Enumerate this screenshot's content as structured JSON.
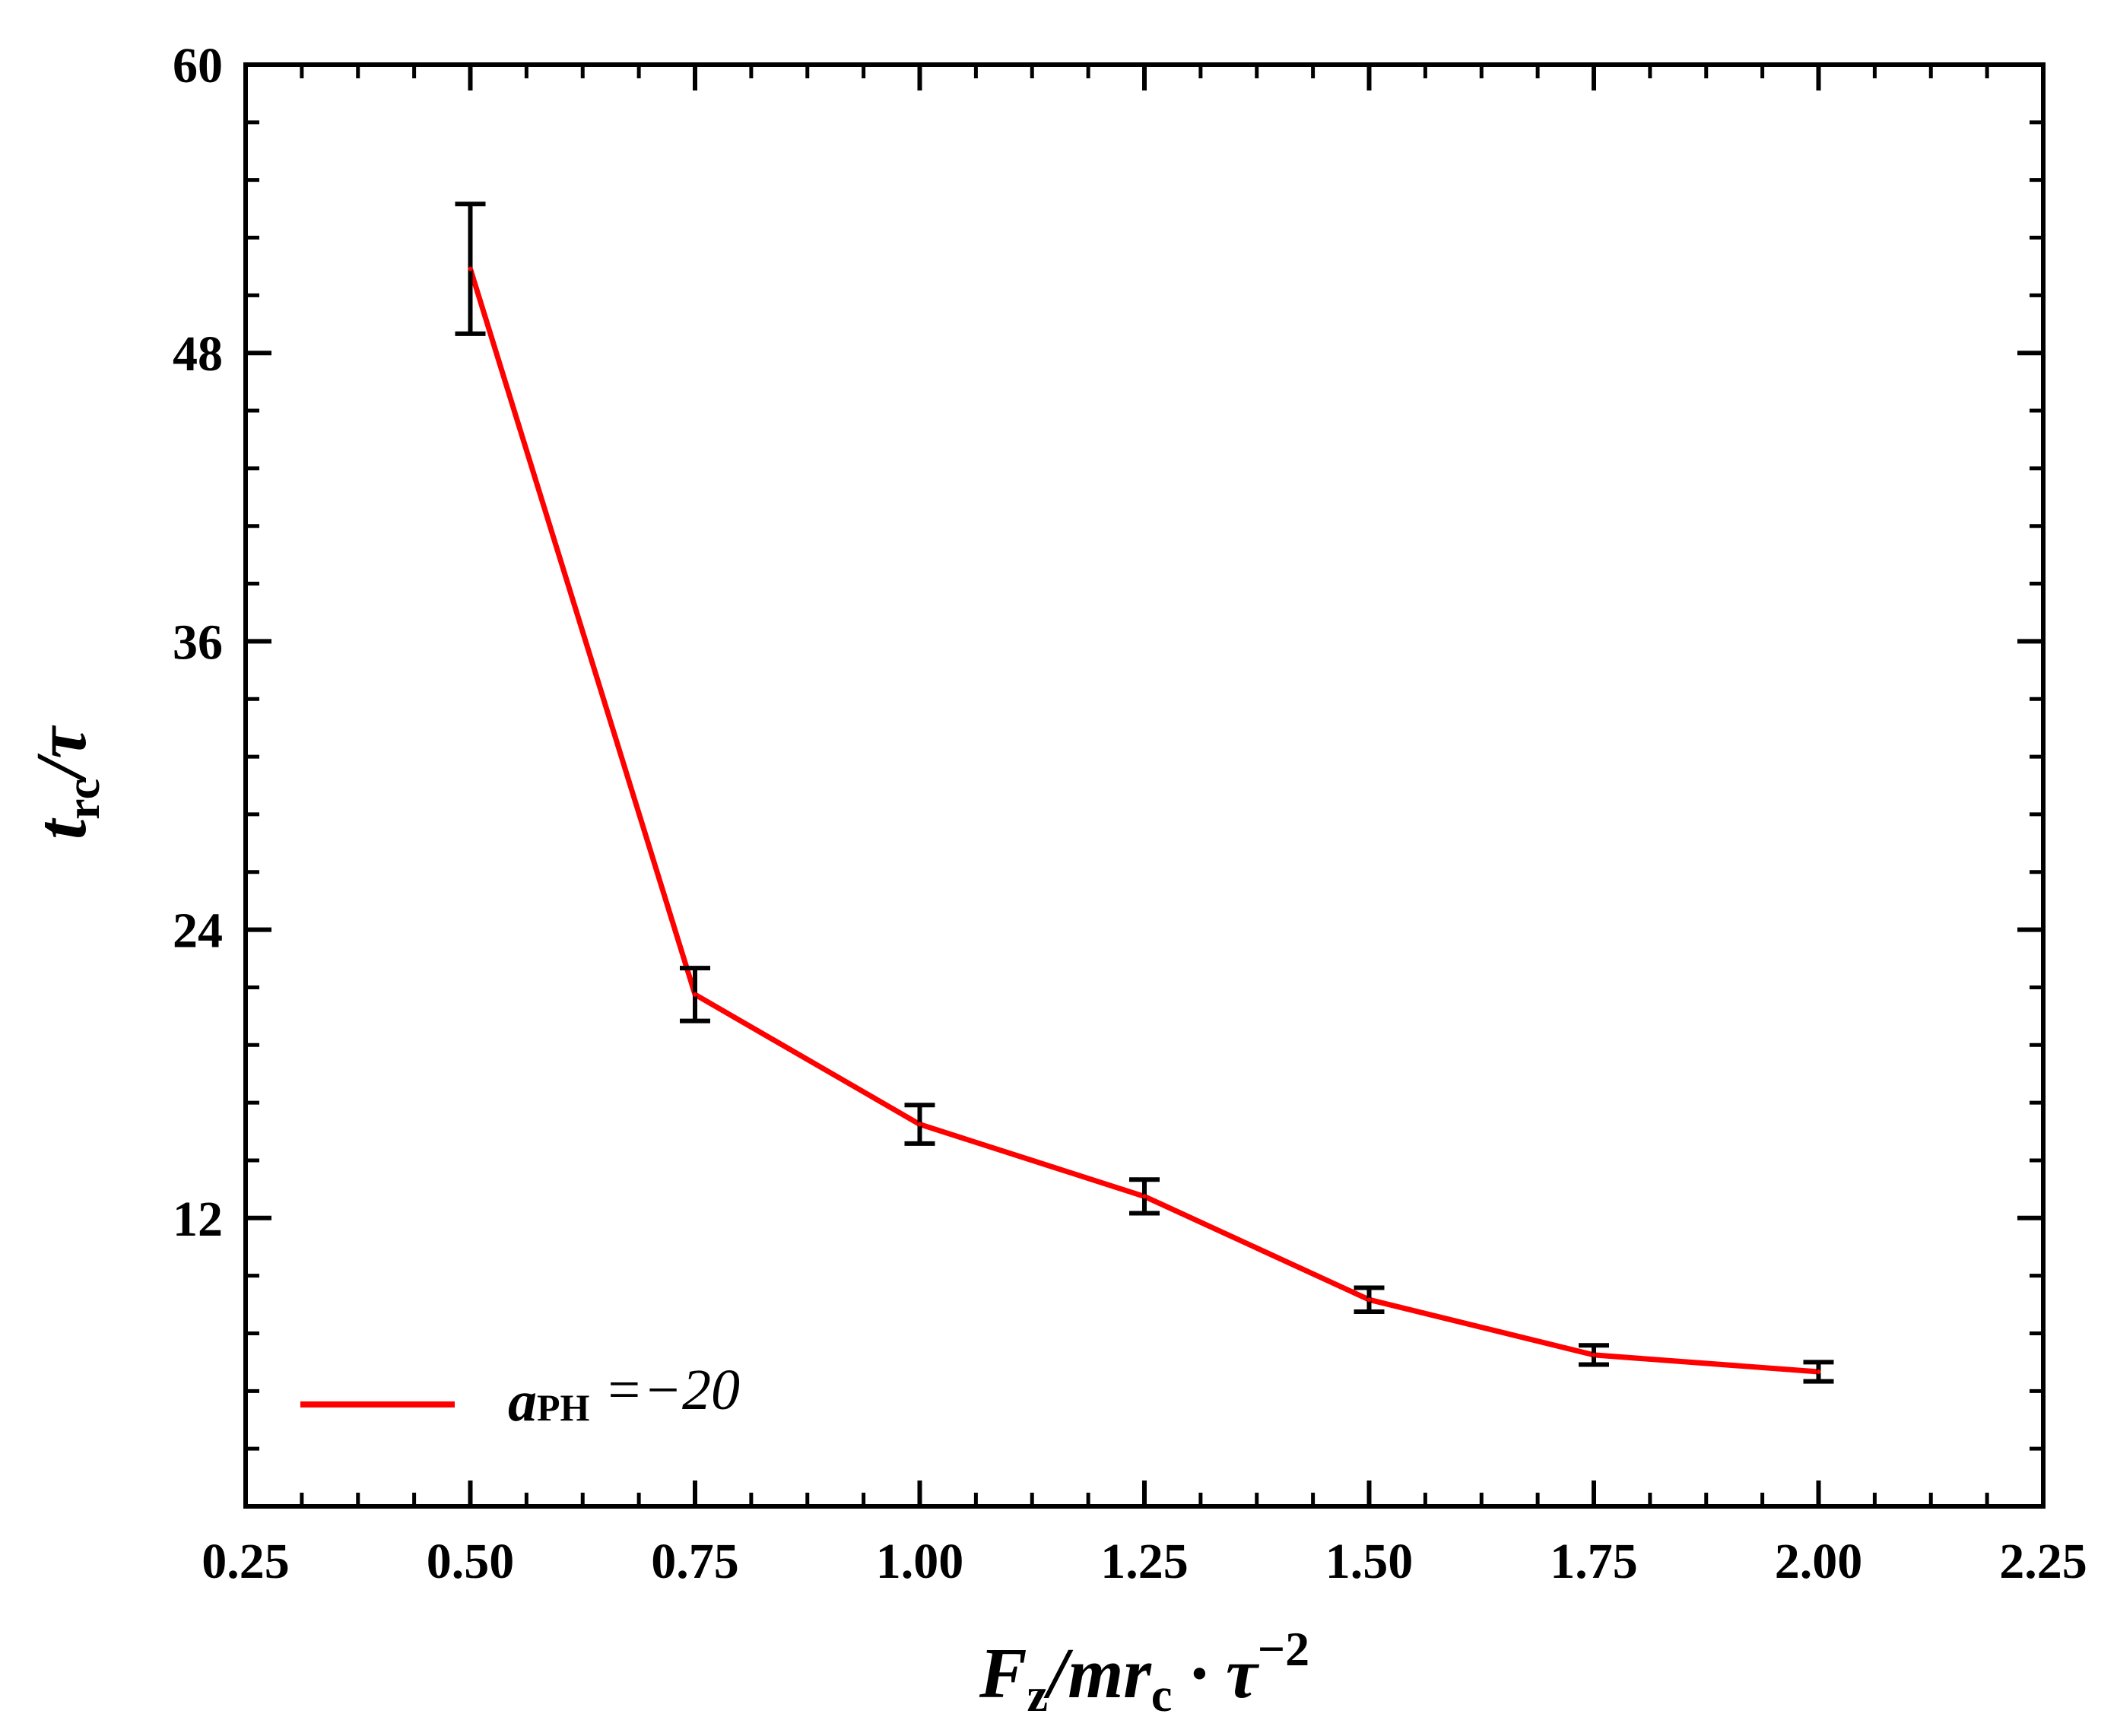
{
  "chart_data": {
    "type": "line",
    "title": "",
    "xlabel": "F_z/mr_c · τ^-2",
    "xlabel_parts": {
      "a": "F",
      "a_sub": "z",
      "b": "/mr",
      "b_sub": "c",
      "c": " · τ",
      "c_sup": "−2"
    },
    "ylabel": "t_rc/τ",
    "ylabel_parts": {
      "a": "t",
      "a_sub": "rc",
      "b": "/τ"
    },
    "xlim": [
      0.25,
      2.25
    ],
    "ylim": [
      0,
      60
    ],
    "x_ticks": [
      0.25,
      0.5,
      0.75,
      1.0,
      1.25,
      1.5,
      1.75,
      2.0,
      2.25
    ],
    "x_tick_labels": [
      "0.25",
      "0.50",
      "0.75",
      "1.00",
      "1.25",
      "1.50",
      "1.75",
      "2.00",
      "2.25"
    ],
    "y_ticks": [
      12,
      24,
      36,
      48,
      60
    ],
    "y_tick_labels": [
      "12",
      "24",
      "36",
      "48",
      "60"
    ],
    "grid": false,
    "legend_position": "bottom-left",
    "series": [
      {
        "name": "a_PH = −20",
        "legend_parts": {
          "a": "a",
          "a_sub": "PH",
          "b": " =−20"
        },
        "color": "#ff0000",
        "x": [
          0.5,
          0.75,
          1.0,
          1.25,
          1.5,
          1.75,
          2.0
        ],
        "y": [
          51.5,
          21.3,
          15.9,
          12.9,
          8.6,
          6.3,
          5.6
        ],
        "error": [
          2.7,
          1.1,
          0.8,
          0.7,
          0.5,
          0.4,
          0.4
        ]
      }
    ]
  }
}
